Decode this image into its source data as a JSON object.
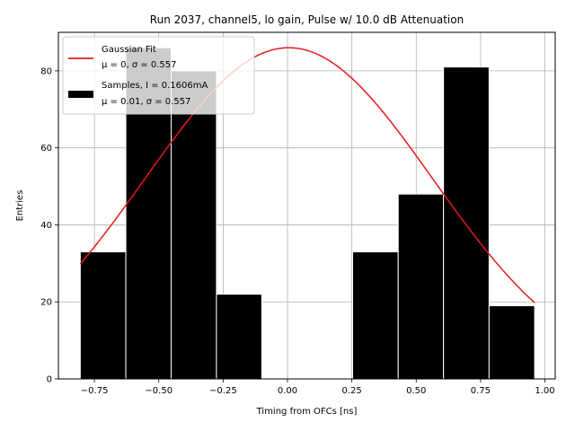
{
  "chart_data": {
    "type": "bar",
    "title": "Run 2037, channel5, lo gain, Pulse w/ 10.0 dB Attenuation",
    "xlabel": "Timing from OFCs [ns]",
    "ylabel": "Entries",
    "xlim": [
      -0.89,
      1.04
    ],
    "ylim": [
      0,
      90
    ],
    "xticks": [
      -0.75,
      -0.5,
      -0.25,
      0.0,
      0.25,
      0.5,
      0.75,
      1.0
    ],
    "xtick_labels": [
      "−0.75",
      "−0.50",
      "−0.25",
      "0.00",
      "0.25",
      "0.50",
      "0.75",
      "1.00"
    ],
    "yticks": [
      0,
      20,
      40,
      60,
      80
    ],
    "ytick_labels": [
      "0",
      "20",
      "40",
      "60",
      "80"
    ],
    "grid": true,
    "legend_position": "top-left",
    "histogram": {
      "name": "Samples, I = 0.1606mA",
      "stats": "μ = 0.01, σ = 0.557",
      "color": "#000000",
      "bins": [
        {
          "x0": -0.805,
          "x1": -0.628,
          "count": 33
        },
        {
          "x0": -0.628,
          "x1": -0.452,
          "count": 86
        },
        {
          "x0": -0.452,
          "x1": -0.276,
          "count": 80
        },
        {
          "x0": -0.276,
          "x1": -0.1,
          "count": 22
        },
        {
          "x0": -0.1,
          "x1": 0.077,
          "count": 0
        },
        {
          "x0": 0.077,
          "x1": 0.253,
          "count": 0
        },
        {
          "x0": 0.253,
          "x1": 0.43,
          "count": 33
        },
        {
          "x0": 0.43,
          "x1": 0.606,
          "count": 48
        },
        {
          "x0": 0.606,
          "x1": 0.783,
          "count": 81
        },
        {
          "x0": 0.783,
          "x1": 0.96,
          "count": 19
        }
      ]
    },
    "fit": {
      "name": "Gaussian Fit",
      "stats": "μ = 0, σ = 0.557",
      "color": "#e41a1c",
      "amplitude": 86,
      "mu": 0.005,
      "sigma": 0.557,
      "x_range": [
        -0.805,
        0.96
      ]
    }
  }
}
